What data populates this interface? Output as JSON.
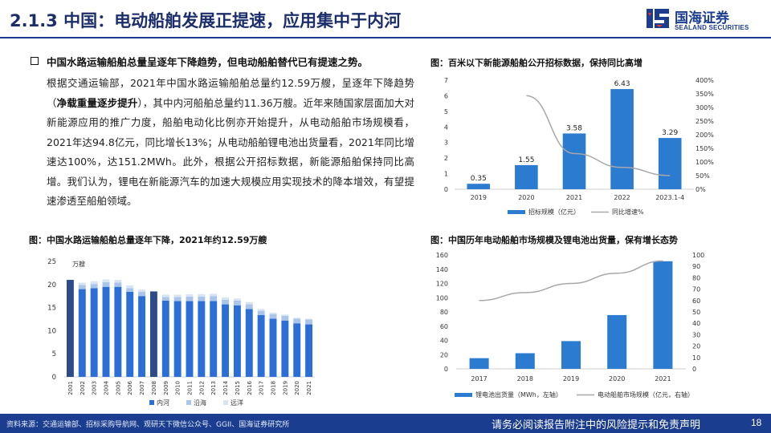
{
  "header": {
    "title": "2.1.3 中国：电动船舶发展正提速，应用集中于内河",
    "logo_cn": "国海证券",
    "logo_en": "SEALAND SECURITIES"
  },
  "bullet": {
    "heading": "中国水路运输船舶总量呈逐年下降趋势，但电动船舶替代已有提速之势。",
    "p1": "根据交通运输部，2021年中国水路运输船舶总量约12.59万艘，呈逐年下降趋势（",
    "p1_bold": "净载重量逐步提升",
    "p2": "），其中内河船舶总量约11.36万艘。近年来随国家层面加大对新能源应用的推广力度，船舶电动化比例亦开始提升，从电动船舶市场规模看，2021年达94.8亿元，同比增长13%；从电动船舶锂电池出货量看，2021年同比增速达100%，达151.2MWh。此外，根据公开招标数据，新能源船舶保持同比高增。我们认为，锂电在新能源汽车的加速大规模应用实现技术的降本增效，有望提速渗透至船舶领域。"
  },
  "figures": {
    "fig1_title": "图：百米以下新能源船舶公开招标数据，保持同比高增",
    "fig2_title": "图：中国水路运输船舶总量逐年下降，2021年约12.59万艘",
    "fig3_title": "图：中国历年电动船舶市场规模及锂电池出货量，保有增长态势"
  },
  "chart_data": [
    {
      "type": "bar",
      "categories": [
        "2019",
        "2020",
        "2021",
        "2022",
        "2023.1-4"
      ],
      "series": [
        {
          "name": "招标规模（亿元）",
          "values": [
            0.35,
            1.55,
            3.58,
            6.43,
            3.29
          ],
          "axis": "left",
          "color": "#2b7bd1"
        },
        {
          "name": "同比增速%",
          "type": "line",
          "values": [
            null,
            343,
            131,
            80,
            50
          ],
          "axis": "right",
          "color": "#a8a8a8"
        }
      ],
      "data_labels": [
        "0.35",
        "1.55",
        "3.58",
        "6.43",
        "3.29"
      ],
      "ylim": [
        0,
        7
      ],
      "y_ticks": [
        "0",
        "1",
        "2",
        "3",
        "4",
        "5",
        "6",
        "7"
      ],
      "y2lim": [
        0,
        400
      ],
      "y2_ticks": [
        "0%",
        "50%",
        "100%",
        "150%",
        "200%",
        "250%",
        "300%",
        "350%",
        "400%"
      ],
      "legend": "bottom",
      "grid": false
    },
    {
      "type": "bar",
      "stacked": true,
      "unit_label": "万艘",
      "categories": [
        "2001",
        "2002",
        "2003",
        "2004",
        "2005",
        "2006",
        "2007",
        "2008",
        "2009",
        "2010",
        "2011",
        "2012",
        "2013",
        "2014",
        "2015",
        "2016",
        "2017",
        "2018",
        "2019",
        "2020",
        "2021"
      ],
      "series": [
        {
          "name": "内河",
          "values": [
            21.0,
            19.0,
            19.2,
            19.5,
            19.5,
            18.4,
            17.5,
            18.5,
            16.5,
            16.4,
            16.4,
            16.4,
            16.4,
            15.7,
            15.5,
            14.7,
            13.4,
            12.6,
            12.2,
            11.6,
            11.36
          ],
          "color": "#2b6fd6"
        },
        {
          "name": "沿海",
          "values": [
            0.0,
            0.9,
            0.9,
            1.0,
            0.9,
            0.8,
            0.9,
            0.0,
            0.8,
            0.9,
            1.0,
            1.0,
            1.1,
            1.0,
            1.0,
            1.0,
            0.9,
            1.0,
            1.0,
            1.0,
            1.05
          ],
          "color": "#a9c6ea"
        },
        {
          "name": "远洋",
          "values": [
            0.0,
            0.5,
            0.6,
            0.6,
            0.6,
            0.6,
            0.5,
            0.0,
            0.5,
            0.5,
            0.5,
            0.5,
            0.5,
            0.5,
            0.5,
            0.5,
            0.4,
            0.3,
            0.3,
            0.2,
            0.18
          ],
          "color": "#d9e4f3"
        }
      ],
      "highlight_color": "#2d4a8a",
      "highlighted_categories": [
        "2001",
        "2008"
      ],
      "ylim": [
        0,
        25
      ],
      "y_ticks": [
        "0",
        "5",
        "10",
        "15",
        "20",
        "25"
      ],
      "legend": "bottom",
      "grid": false
    },
    {
      "type": "bar",
      "categories": [
        "2017",
        "2018",
        "2019",
        "2020",
        "2021"
      ],
      "series": [
        {
          "name": "锂电池出货量（MWh，左轴）",
          "values": [
            15,
            22,
            39,
            75.6,
            151.2
          ],
          "axis": "left",
          "color": "#2b7bd1"
        },
        {
          "name": "电动船舶市场规模（亿元，右轴）",
          "type": "line",
          "values": [
            60,
            67,
            75,
            84,
            94.8
          ],
          "axis": "right",
          "color": "#a8a8a8"
        }
      ],
      "ylim": [
        0,
        160
      ],
      "y_ticks": [
        "0",
        "20",
        "40",
        "60",
        "80",
        "100",
        "120",
        "140",
        "160"
      ],
      "y2lim": [
        0,
        100
      ],
      "y2_ticks": [
        "0",
        "10",
        "20",
        "30",
        "40",
        "50",
        "60",
        "70",
        "80",
        "90",
        "100"
      ],
      "legend": "bottom",
      "grid": false
    }
  ],
  "footer": {
    "source": "资料来源：交通运输部、招标采购导航网、观研天下微信公众号、GGII、国海证券研究所",
    "disclaimer": "请务必阅读报告附注中的风险提示和免责声明",
    "page": "18"
  }
}
